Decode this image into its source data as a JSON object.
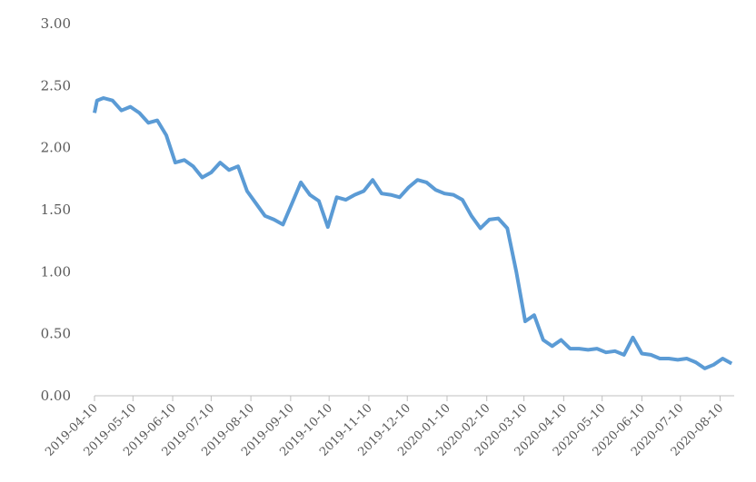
{
  "chart_data": {
    "type": "line",
    "x": [
      "2019-04-10",
      "2019-04-12",
      "2019-04-17",
      "2019-04-24",
      "2019-05-01",
      "2019-05-08",
      "2019-05-15",
      "2019-05-22",
      "2019-05-29",
      "2019-06-05",
      "2019-06-12",
      "2019-06-19",
      "2019-06-26",
      "2019-07-03",
      "2019-07-10",
      "2019-07-17",
      "2019-07-24",
      "2019-07-31",
      "2019-08-07",
      "2019-08-14",
      "2019-08-21",
      "2019-08-28",
      "2019-09-04",
      "2019-09-11",
      "2019-09-18",
      "2019-09-25",
      "2019-10-02",
      "2019-10-09",
      "2019-10-16",
      "2019-10-23",
      "2019-10-30",
      "2019-11-06",
      "2019-11-13",
      "2019-11-20",
      "2019-11-27",
      "2019-12-04",
      "2019-12-11",
      "2019-12-18",
      "2019-12-25",
      "2020-01-01",
      "2020-01-08",
      "2020-01-15",
      "2020-01-22",
      "2020-01-29",
      "2020-02-05",
      "2020-02-12",
      "2020-02-19",
      "2020-02-26",
      "2020-03-04",
      "2020-03-11",
      "2020-03-18",
      "2020-03-25",
      "2020-04-01",
      "2020-04-08",
      "2020-04-15",
      "2020-04-22",
      "2020-04-29",
      "2020-05-06",
      "2020-05-13",
      "2020-05-20",
      "2020-05-27",
      "2020-06-03",
      "2020-06-10",
      "2020-06-17",
      "2020-06-24",
      "2020-07-01",
      "2020-07-08",
      "2020-07-15",
      "2020-07-22",
      "2020-07-29",
      "2020-08-05",
      "2020-08-12",
      "2020-08-19"
    ],
    "series": [
      {
        "color": "#5b9bd5",
        "values": [
          2.28,
          2.38,
          2.4,
          2.38,
          2.3,
          2.33,
          2.28,
          2.2,
          2.22,
          2.1,
          1.88,
          1.9,
          1.85,
          1.76,
          1.8,
          1.88,
          1.82,
          1.85,
          1.65,
          1.55,
          1.45,
          1.42,
          1.38,
          1.55,
          1.72,
          1.62,
          1.57,
          1.36,
          1.6,
          1.58,
          1.62,
          1.65,
          1.74,
          1.63,
          1.62,
          1.6,
          1.68,
          1.74,
          1.72,
          1.66,
          1.63,
          1.62,
          1.58,
          1.45,
          1.35,
          1.42,
          1.43,
          1.35,
          1.0,
          0.6,
          0.65,
          0.45,
          0.4,
          0.45,
          0.38,
          0.38,
          0.37,
          0.38,
          0.35,
          0.36,
          0.33,
          0.47,
          0.34,
          0.33,
          0.3,
          0.3,
          0.29,
          0.3,
          0.27,
          0.22,
          0.25,
          0.3,
          0.26
        ]
      }
    ],
    "xlim": [
      "2019-04-10",
      "2020-08-21"
    ],
    "xticks": [
      "2019-04-10",
      "2019-05-10",
      "2019-06-10",
      "2019-07-10",
      "2019-08-10",
      "2019-09-10",
      "2019-10-10",
      "2019-11-10",
      "2019-12-10",
      "2020-01-10",
      "2020-02-10",
      "2020-03-10",
      "2020-04-10",
      "2020-05-10",
      "2020-06-10",
      "2020-07-10",
      "2020-08-10"
    ],
    "ylim": [
      0,
      3
    ],
    "yticks": [
      {
        "value": 0,
        "label": "0.00"
      },
      {
        "value": 0.5,
        "label": "0.50"
      },
      {
        "value": 1,
        "label": "1.00"
      },
      {
        "value": 1.5,
        "label": "1.50"
      },
      {
        "value": 2,
        "label": "2.00"
      },
      {
        "value": 2.5,
        "label": "2.50"
      },
      {
        "value": 3,
        "label": "3.00"
      }
    ]
  }
}
